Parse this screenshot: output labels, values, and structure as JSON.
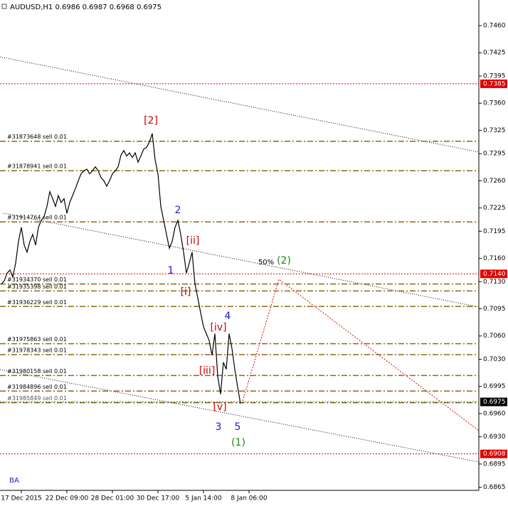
{
  "chart_data": {
    "type": "line",
    "title": "AUDUSD,H1  0.6986 0.6987 0.6968 0.6975",
    "color": "#000000",
    "categories": [
      null,
      null,
      null,
      null,
      null,
      null,
      null,
      "17 Dec 2015",
      null,
      null,
      null,
      null,
      null,
      null,
      null,
      null,
      null,
      null,
      null,
      null,
      null,
      null,
      null,
      "22 Dec 09:00",
      null,
      null,
      null,
      null,
      null,
      null,
      null,
      null,
      null,
      null,
      null,
      null,
      null,
      null,
      null,
      "28 Dec 01:00",
      null,
      null,
      null,
      null,
      null,
      null,
      null,
      null,
      null,
      null,
      null,
      null,
      null,
      null,
      null,
      "30 Dec 17:00",
      null,
      null,
      null,
      null,
      null,
      null,
      null,
      null,
      null,
      null,
      null,
      null,
      null,
      null,
      null,
      "5 Jan 14:00",
      null,
      null,
      null,
      null,
      null,
      null,
      null,
      null,
      null,
      null,
      null,
      null,
      null,
      null,
      null,
      "8 Jan 06:00"
    ],
    "values": [
      0.7127,
      0.7131,
      0.7141,
      0.7145,
      0.7136,
      0.7154,
      0.7182,
      0.72,
      0.7177,
      0.7168,
      0.7182,
      0.7191,
      0.7177,
      0.72,
      0.7209,
      0.7214,
      0.7227,
      0.7246,
      0.7237,
      0.7227,
      0.7241,
      0.7232,
      0.7237,
      0.7218,
      0.7232,
      0.7241,
      0.725,
      0.726,
      0.7269,
      0.7273,
      0.7275,
      0.7269,
      0.7273,
      0.7278,
      0.7273,
      0.7264,
      0.726,
      0.7253,
      0.726,
      0.7269,
      0.7273,
      0.7278,
      0.7293,
      0.7299,
      0.7292,
      0.7296,
      0.729,
      0.7296,
      0.7284,
      0.7292,
      0.7301,
      0.7303,
      0.731,
      0.7321,
      0.7287,
      0.7269,
      0.7227,
      0.7209,
      0.7191,
      0.7173,
      0.7182,
      0.72,
      0.7209,
      0.7191,
      0.7168,
      0.7141,
      0.7154,
      0.7168,
      0.7127,
      0.7109,
      0.709,
      0.7072,
      0.7063,
      0.7054,
      0.7035,
      0.7063,
      0.7008,
      0.6985,
      0.7026,
      0.7017,
      0.7063,
      0.7044,
      0.7017,
      0.6994,
      0.6973,
      null,
      null,
      null
    ],
    "ylim": [
      0.6861,
      0.7493
    ],
    "yticks": [
      {
        "value": 0.746,
        "label": "0.7460"
      },
      {
        "value": 0.7425,
        "label": "0.7425"
      },
      {
        "value": 0.7395,
        "label": "0.7395"
      },
      {
        "value": 0.736,
        "label": "0.7360"
      },
      {
        "value": 0.7325,
        "label": "0.7325"
      },
      {
        "value": 0.7295,
        "label": "0.7295"
      },
      {
        "value": 0.726,
        "label": "0.7260"
      },
      {
        "value": 0.7225,
        "label": "0.7225"
      },
      {
        "value": 0.7195,
        "label": "0.7195"
      },
      {
        "value": 0.716,
        "label": "0.7160"
      },
      {
        "value": 0.713,
        "label": "0.7130"
      },
      {
        "value": 0.7095,
        "label": "0.7095"
      },
      {
        "value": 0.706,
        "label": "0.7060"
      },
      {
        "value": 0.703,
        "label": "0.7030"
      },
      {
        "value": 0.6995,
        "label": "0.6995"
      },
      {
        "value": 0.696,
        "label": "0.6960"
      },
      {
        "value": 0.693,
        "label": "0.6930"
      },
      {
        "value": 0.6895,
        "label": "0.6895"
      },
      {
        "value": 0.6865,
        "label": "0.6865"
      }
    ],
    "levels": [
      {
        "value": 0.7385,
        "label": "0.7385",
        "color": "#e00000"
      },
      {
        "value": 0.714,
        "label": "0.7140",
        "color": "#e00000"
      },
      {
        "value": 0.6908,
        "label": "0.6908",
        "color": "#e00000"
      },
      {
        "value": 0.6975,
        "label": "0.6975",
        "color": "#000000",
        "line_color": "#2e8b57"
      }
    ],
    "orders": [
      {
        "label": "#31873648 sell 0.01",
        "price": 0.7311
      },
      {
        "label": "#31878941 sell 0.01",
        "price": 0.7273
      },
      {
        "label": "#31914764 sell 0.01",
        "price": 0.7207
      },
      {
        "label": "#31934370 sell 0.01",
        "price": 0.7127
      },
      {
        "label": "#31935398 sell 0.01",
        "price": 0.7118
      },
      {
        "label": "#31936229 sell 0.01",
        "price": 0.7098
      },
      {
        "label": "#31975863 sell 0.01",
        "price": 0.705
      },
      {
        "label": "#31978343 sell 0.01",
        "price": 0.7036
      },
      {
        "label": "#31980158 sell 0.01",
        "price": 0.7009
      },
      {
        "label": "#31984896 sell 0.01",
        "price": 0.6989
      },
      {
        "label": "#31985849 sell 0.01",
        "price": 0.6974
      }
    ],
    "order_color": "#8b6914",
    "annotations": [
      {
        "text": "[2]",
        "color": "#d00000"
      },
      {
        "text": "2",
        "color": "#1a1acc"
      },
      {
        "text": "1",
        "color": "#1a1acc"
      },
      {
        "text": "[ii]",
        "color": "#d00000"
      },
      {
        "text": "[i]",
        "color": "#d00000"
      },
      {
        "text": "[iv]",
        "color": "#d00000"
      },
      {
        "text": "4",
        "color": "#1a1acc"
      },
      {
        "text": "[iii]",
        "color": "#d00000"
      },
      {
        "text": "[v]",
        "color": "#d00000"
      },
      {
        "text": "3",
        "color": "#1a1acc"
      },
      {
        "text": "5",
        "color": "#1a1acc"
      },
      {
        "text": "(1)",
        "color": "#1a8a1a"
      },
      {
        "text": "50%",
        "color": "#000000"
      },
      {
        "text": "(2)",
        "color": "#1a8a1a"
      },
      {
        "text": "BA",
        "color": "#1a1acc"
      }
    ]
  }
}
